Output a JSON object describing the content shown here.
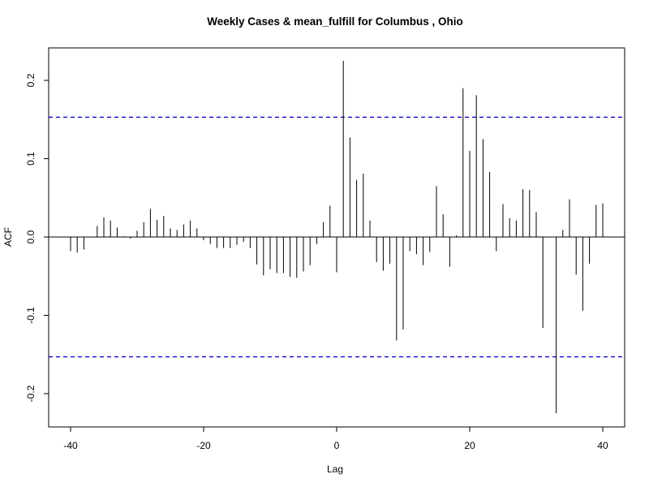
{
  "chart_data": {
    "type": "bar",
    "title": "Weekly Cases & mean_fulfill for Columbus , Ohio",
    "xlabel": "Lag",
    "ylabel": "ACF",
    "xlim": [
      -40,
      40
    ],
    "ylim": [
      -0.22,
      0.22
    ],
    "x_ticks": [
      -40,
      -20,
      0,
      20,
      40
    ],
    "x_tick_labels": [
      "-40",
      "-20",
      "0",
      "20",
      "40"
    ],
    "y_ticks": [
      -0.2,
      -0.1,
      0.0,
      0.1,
      0.2
    ],
    "y_tick_labels": [
      "-0.2",
      "-0.1",
      "0.0",
      "0.1",
      "0.2"
    ],
    "confidence_bound": 0.153,
    "confidence_color": "#0000cc",
    "zero_line": 0,
    "grid": false,
    "series": [
      {
        "lags": [
          -40,
          -39,
          -38,
          -37,
          -36,
          -35,
          -34,
          -33,
          -32,
          -31,
          -30,
          -29,
          -28,
          -27,
          -26,
          -25,
          -24,
          -23,
          -22,
          -21,
          -20,
          -19,
          -18,
          -17,
          -16,
          -15,
          -14,
          -13,
          -12,
          -11,
          -10,
          -9,
          -8,
          -7,
          -6,
          -5,
          -4,
          -3,
          -2,
          -1,
          0,
          1,
          2,
          3,
          4,
          5,
          6,
          7,
          8,
          9,
          10,
          11,
          12,
          13,
          14,
          15,
          16,
          17,
          18,
          19,
          20,
          21,
          22,
          23,
          24,
          25,
          26,
          27,
          28,
          29,
          30,
          31,
          32,
          33,
          34,
          35,
          36,
          37,
          38,
          39,
          40
        ],
        "values": [
          -0.018,
          -0.02,
          -0.016,
          0.0,
          0.014,
          0.025,
          0.021,
          0.012,
          0.001,
          -0.002,
          0.008,
          0.019,
          0.036,
          0.022,
          0.027,
          0.011,
          0.009,
          0.016,
          0.021,
          0.011,
          -0.004,
          -0.009,
          -0.014,
          -0.014,
          -0.014,
          -0.01,
          -0.006,
          -0.014,
          -0.035,
          -0.049,
          -0.041,
          -0.046,
          -0.046,
          -0.051,
          -0.052,
          -0.044,
          -0.036,
          -0.009,
          0.019,
          0.04,
          -0.045,
          0.225,
          0.127,
          0.073,
          0.081,
          0.021,
          -0.032,
          -0.043,
          -0.034,
          -0.132,
          -0.118,
          -0.018,
          -0.022,
          -0.036,
          -0.019,
          0.065,
          0.029,
          -0.038,
          0.002,
          0.19,
          0.11,
          0.181,
          0.125,
          0.083,
          -0.018,
          0.042,
          0.024,
          0.021,
          0.061,
          0.06,
          0.032,
          -0.116,
          0.0,
          -0.225,
          0.009,
          0.048,
          -0.048,
          -0.094,
          -0.034,
          0.041,
          0.043
        ]
      }
    ]
  }
}
